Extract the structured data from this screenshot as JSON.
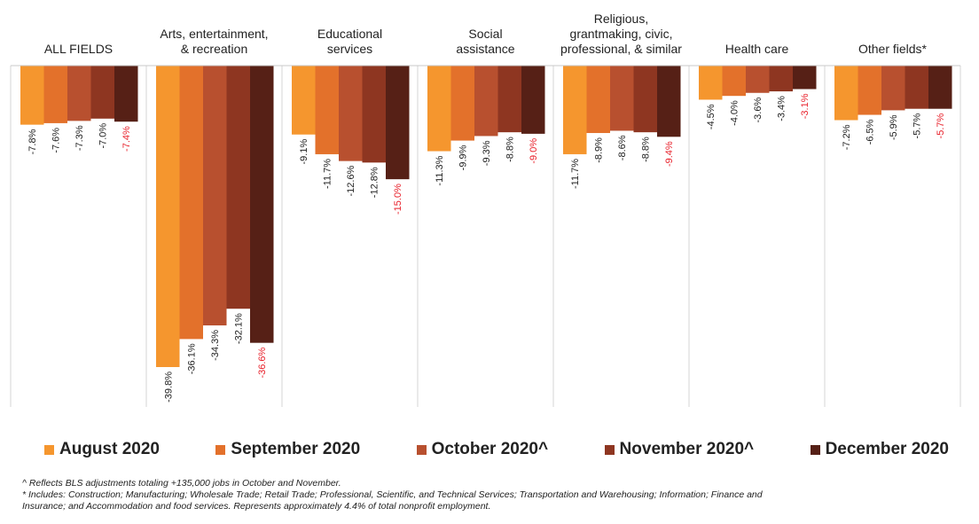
{
  "colors": [
    "#f5962e",
    "#e3712b",
    "#b8502f",
    "#8e3621",
    "#562016"
  ],
  "highlight_color": "#e8202a",
  "chart_data": {
    "type": "bar",
    "categories": [
      {
        "id": "all-fields",
        "lines": [
          "ALL FIELDS"
        ]
      },
      {
        "id": "arts",
        "lines": [
          "Arts, entertainment,",
          "& recreation"
        ]
      },
      {
        "id": "educational",
        "lines": [
          "Educational",
          "services"
        ]
      },
      {
        "id": "social",
        "lines": [
          "Social",
          "assistance"
        ]
      },
      {
        "id": "religious",
        "lines": [
          "Religious,",
          "grantmaking, civic,",
          "professional, & similar"
        ]
      },
      {
        "id": "health",
        "lines": [
          "Health care"
        ]
      },
      {
        "id": "other",
        "lines": [
          "Other fields*"
        ]
      }
    ],
    "series": [
      {
        "name": "August 2020",
        "values": [
          -7.8,
          -39.8,
          -9.1,
          -11.3,
          -11.7,
          -4.5,
          -7.2
        ]
      },
      {
        "name": "September 2020",
        "values": [
          -7.6,
          -36.1,
          -11.7,
          -9.9,
          -8.9,
          -4.0,
          -6.5
        ]
      },
      {
        "name": "October 2020^",
        "values": [
          -7.3,
          -34.3,
          -12.6,
          -9.3,
          -8.6,
          -3.6,
          -5.9
        ]
      },
      {
        "name": "November 2020^",
        "values": [
          -7.0,
          -32.1,
          -12.8,
          -8.8,
          -8.8,
          -3.4,
          -5.7
        ]
      },
      {
        "name": "December 2020",
        "values": [
          -7.4,
          -36.6,
          -15.0,
          -9.0,
          -9.4,
          -3.1,
          -5.7
        ]
      }
    ],
    "value_labels": [
      [
        "-7.8%",
        "-39.8%",
        "-9.1%",
        "-11.3%",
        "-11.7%",
        "-4.5%",
        "-7.2%"
      ],
      [
        "-7.6%",
        "-36.1%",
        "-11.7%",
        "-9.9%",
        "-8.9%",
        "-4.0%",
        "-6.5%"
      ],
      [
        "-7.3%",
        "-34.3%",
        "-12.6%",
        "-9.3%",
        "-8.6%",
        "-3.6%",
        "-5.9%"
      ],
      [
        "-7.0%",
        "-32.1%",
        "-12.8%",
        "-8.8%",
        "-8.8%",
        "-3.4%",
        "-5.7%"
      ],
      [
        "-7.4%",
        "-36.6%",
        "-15.0%",
        "-9.0%",
        "-9.4%",
        "-3.1%",
        "-5.7%"
      ]
    ],
    "highlighted_series": 4,
    "ylim": [
      -45,
      0
    ],
    "legend_position": "bottom",
    "grid": false
  },
  "footnotes": [
    "^ Reflects BLS adjustments totaling +135,000 jobs in October and November.",
    "* Includes: Construction; Manufacturing; Wholesale Trade; Retail Trade; Professional, Scientific, and Technical Services; Transportation and Warehousing; Information; Finance and",
    "Insurance; and Accommodation and food services. Represents approximately 4.4% of total nonprofit employment."
  ]
}
